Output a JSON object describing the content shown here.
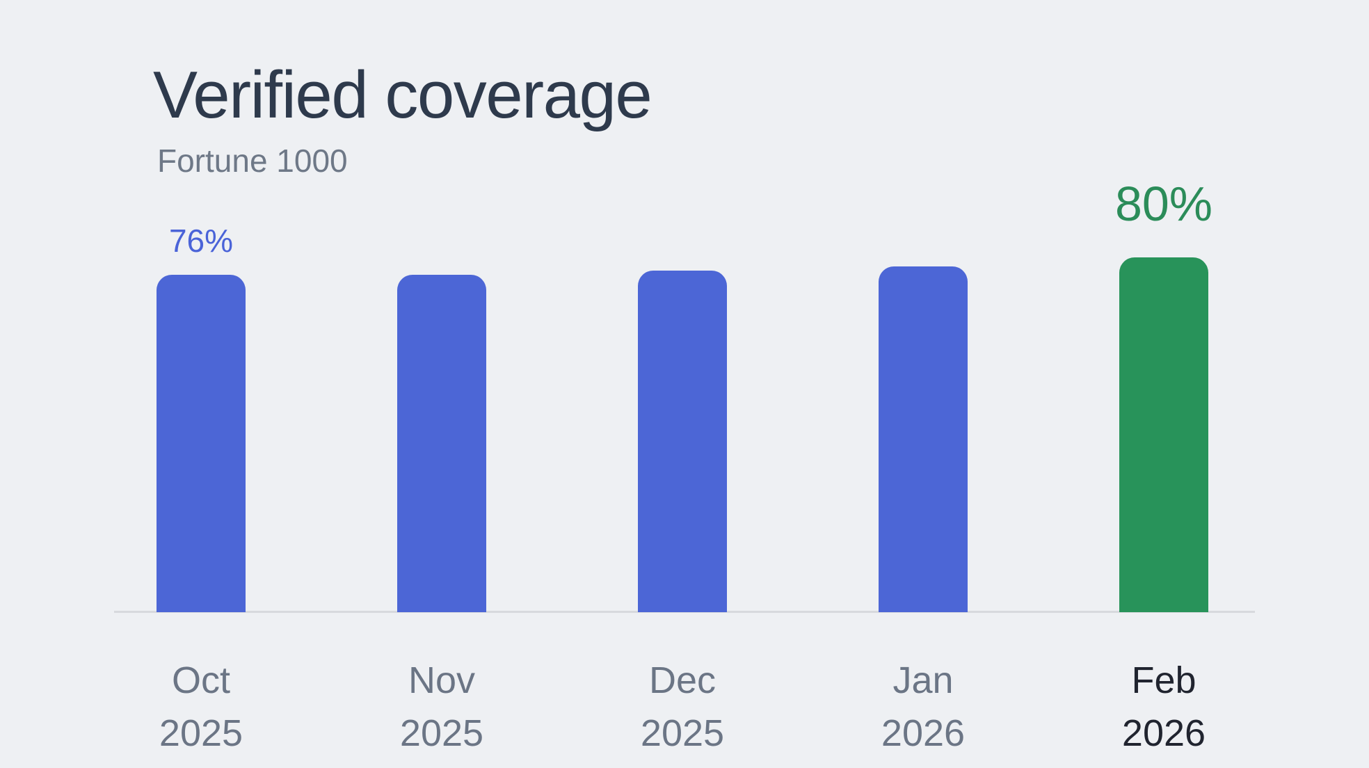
{
  "header": {
    "title": "Verified coverage",
    "subtitle": "Fortune 1000"
  },
  "chart_data": {
    "type": "bar",
    "title": "Verified coverage",
    "subtitle": "Fortune 1000",
    "categories": [
      "Oct 2025",
      "Nov 2025",
      "Dec 2025",
      "Jan 2026",
      "Feb 2026"
    ],
    "x_tick_lines": [
      [
        "Oct",
        "2025"
      ],
      [
        "Nov",
        "2025"
      ],
      [
        "Dec",
        "2025"
      ],
      [
        "Jan",
        "2026"
      ],
      [
        "Feb",
        "2026"
      ]
    ],
    "values": [
      76,
      76,
      77,
      78,
      80
    ],
    "unit": "%",
    "ylim": [
      0,
      80
    ],
    "bar_value_labels": [
      "76%",
      null,
      null,
      null,
      "80%"
    ],
    "highlight_index": 4,
    "grid": false,
    "legend": false,
    "colors": {
      "background": "#EEF0F3",
      "bar": "#4C66D6",
      "bar_highlight": "#28935A",
      "value_label": "#4A63D8",
      "value_label_highlight": "#2B8C59",
      "axis_line": "#D7D9DD",
      "tick": "#6B7585",
      "tick_highlight": "#20242F",
      "title": "#2E3A4C",
      "subtitle": "#6E7887"
    }
  }
}
